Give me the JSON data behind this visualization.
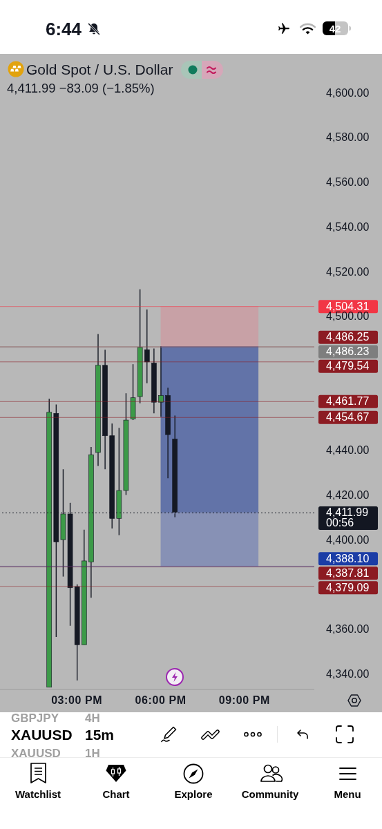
{
  "chart_data": {
    "type": "candlestick",
    "title": "Gold Spot / U.S. Dollar",
    "subtitle": "4,411.99 −83.09 (−1.85%)",
    "x": [
      14,
      14.25,
      14.5,
      14.75,
      15,
      15.25,
      15.5,
      15.75,
      16,
      16.25,
      16.5,
      16.75,
      17,
      17.25,
      17.5,
      17.75,
      18,
      18.25,
      18.5,
      18.75,
      19,
      19.25,
      19.5,
      19.75,
      20,
      20.25,
      20.5,
      20.75,
      21,
      21.25,
      21.5
    ],
    "ohlc": [
      [
        4334,
        4463,
        4334,
        4457
      ],
      [
        4456.5,
        4460.5,
        4356.5,
        4399
      ],
      [
        4400,
        4431.5,
        4383.5,
        4411.5
      ],
      [
        4411.5,
        4416.5,
        4361.5,
        4378.5
      ],
      [
        4379,
        4380,
        4337,
        4353
      ],
      [
        4353,
        4404.5,
        4353,
        4390.5
      ],
      [
        4390,
        4441.5,
        4374,
        4438
      ],
      [
        4439,
        4492,
        4433,
        4478
      ],
      [
        4478,
        4485,
        4431.5,
        4446.5
      ],
      [
        4446.5,
        4452,
        4405,
        4409.5
      ],
      [
        4409.5,
        4450,
        4402,
        4422
      ],
      [
        4422,
        4465.5,
        4420,
        4453.5
      ],
      [
        4454,
        4478.5,
        4453.5,
        4463.5
      ],
      [
        4464,
        4512,
        4461,
        4486
      ],
      [
        4485,
        4503,
        4470,
        4479.5
      ],
      [
        4479,
        4485.5,
        4456.5,
        4461.5
      ],
      [
        4461.5,
        4486.5,
        4455,
        4464.5
      ],
      [
        4464.5,
        4468,
        4427.5,
        4447
      ],
      [
        4445,
        4455.5,
        4410,
        4411.99
      ],
      null,
      null,
      null,
      null,
      null,
      null,
      null,
      null,
      null,
      null,
      null,
      null
    ],
    "colors": [
      "#3c9a48",
      "#151924",
      "#3c9a48",
      "#151924",
      "#151924",
      "#3c9a48",
      "#3c9a48",
      "#3c9a48",
      "#151924",
      "#151924",
      "#3c9a48",
      "#3c9a48",
      "#3c9a48",
      "#3c9a48",
      "#151924",
      "#151924",
      "#3c9a48",
      "#151924",
      "#151924",
      null,
      null,
      null,
      null,
      null,
      null,
      null,
      null,
      null,
      null,
      null,
      null
    ],
    "series": [
      {
        "type": "line",
        "values": [
          null,
          null,
          null,
          null,
          null,
          null,
          null,
          null,
          null,
          null,
          null,
          null,
          null,
          null,
          null,
          null,
          4504.31,
          4504.31,
          4504.31,
          4504.31,
          4504.31,
          4504.31,
          4504.31,
          4504.31,
          4504.31,
          4504.31,
          4504.31,
          4504.31,
          4504.31,
          4504.31,
          4504.31
        ],
        "lower": [
          null,
          null,
          null,
          null,
          null,
          null,
          null,
          null,
          null,
          null,
          null,
          null,
          null,
          null,
          null,
          null,
          4486.23,
          4486.23,
          4486.23,
          4486.23,
          4486.23,
          4486.23,
          4486.23,
          4486.23,
          4486.23,
          4486.23,
          4486.23,
          4486.23,
          4486.23,
          4486.23,
          4486.23
        ],
        "upper": [
          null,
          null,
          null,
          null,
          null,
          null,
          null,
          null,
          null,
          null,
          null,
          null,
          null,
          null,
          null,
          null,
          4504.31,
          4504.31,
          4504.31,
          4504.31,
          4504.31,
          4504.31,
          4504.31,
          4504.31,
          4504.31,
          4504.31,
          4504.31,
          4504.31,
          4504.31,
          4504.31,
          4504.31
        ],
        "color": "#c8a1a6"
      },
      {
        "type": "line",
        "values": [
          null,
          null,
          null,
          null,
          null,
          null,
          null,
          null,
          null,
          null,
          null,
          null,
          null,
          null,
          null,
          null,
          4486.23,
          4486.23,
          4486.23,
          4486.23,
          4486.23,
          4486.23,
          4486.23,
          4486.23,
          4486.23,
          4486.23,
          4486.23,
          4486.23,
          4486.23,
          4486.23,
          4486.23
        ],
        "lower": [
          null,
          null,
          null,
          null,
          null,
          null,
          null,
          null,
          null,
          null,
          null,
          null,
          null,
          null,
          null,
          null,
          4411.99,
          4411.99,
          4411.99,
          4411.99,
          4411.99,
          4411.99,
          4411.99,
          4411.99,
          4411.99,
          4411.99,
          4411.99,
          4411.99,
          4411.99,
          4411.99,
          4411.99
        ],
        "upper": [
          null,
          null,
          null,
          null,
          null,
          null,
          null,
          null,
          null,
          null,
          null,
          null,
          null,
          null,
          null,
          null,
          4486.23,
          4486.23,
          4486.23,
          4486.23,
          4486.23,
          4486.23,
          4486.23,
          4486.23,
          4486.23,
          4486.23,
          4486.23,
          4486.23,
          4486.23,
          4486.23,
          4486.23
        ],
        "color": "#6273a8"
      },
      {
        "type": "line",
        "values": [
          null,
          null,
          null,
          null,
          null,
          null,
          null,
          null,
          null,
          null,
          null,
          null,
          null,
          null,
          null,
          null,
          4411.99,
          4411.99,
          4411.99,
          4411.99,
          4411.99,
          4411.99,
          4411.99,
          4411.99,
          4411.99,
          4411.99,
          4411.99,
          4411.99,
          4411.99,
          4411.99,
          4411.99
        ],
        "lower": [
          null,
          null,
          null,
          null,
          null,
          null,
          null,
          null,
          null,
          null,
          null,
          null,
          null,
          null,
          null,
          null,
          4388.1,
          4388.1,
          4388.1,
          4388.1,
          4388.1,
          4388.1,
          4388.1,
          4388.1,
          4388.1,
          4388.1,
          4388.1,
          4388.1,
          4388.1,
          4388.1,
          4388.1
        ],
        "upper": [
          null,
          null,
          null,
          null,
          null,
          null,
          null,
          null,
          null,
          null,
          null,
          null,
          null,
          null,
          null,
          null,
          4411.99,
          4411.99,
          4411.99,
          4411.99,
          4411.99,
          4411.99,
          4411.99,
          4411.99,
          4411.99,
          4411.99,
          4411.99,
          4411.99,
          4411.99,
          4411.99,
          4411.99
        ],
        "color": "#8791b5"
      }
    ],
    "xlim": [
      12.25,
      23.5
    ],
    "xticks": [
      {
        "value": 15,
        "label": "03:00 PM"
      },
      {
        "value": 18,
        "label": "06:00 PM"
      },
      {
        "value": 21,
        "label": "09:00 PM"
      }
    ],
    "ylim": [
      4333,
      4617
    ],
    "yticks": [
      {
        "value": 4600,
        "label": "4,600.00"
      },
      {
        "value": 4580,
        "label": "4,580.00"
      },
      {
        "value": 4560,
        "label": "4,560.00"
      },
      {
        "value": 4540,
        "label": "4,540.00"
      },
      {
        "value": 4520,
        "label": "4,520.00"
      },
      {
        "value": 4500,
        "label": "4,500.00"
      },
      {
        "value": 4440,
        "label": "4,440.00"
      },
      {
        "value": 4420,
        "label": "4,420.00"
      },
      {
        "value": 4400,
        "label": "4,400.00"
      },
      {
        "value": 4360,
        "label": "4,360.00"
      },
      {
        "value": 4340,
        "label": "4,340.00"
      }
    ],
    "ref_lines": [
      {
        "axis": "y",
        "value": 4504.31,
        "label": "4,504.31",
        "color": "#f23645"
      },
      {
        "axis": "y",
        "value": 4486.25,
        "label": "4,486.25",
        "color": "#8c1b22"
      },
      {
        "axis": "y",
        "value": 4486.23,
        "label": "4,486.23",
        "color": "#7e7e7e"
      },
      {
        "axis": "y",
        "value": 4479.54,
        "label": "4,479.54",
        "color": "#8c1b22"
      },
      {
        "axis": "y",
        "value": 4461.77,
        "label": "4,461.77",
        "color": "#8c1b22"
      },
      {
        "axis": "y",
        "value": 4454.67,
        "label": "4,454.67",
        "color": "#8c1b22"
      },
      {
        "axis": "y",
        "value": 4411.99,
        "label": "4,411.99\n00:56",
        "color": "#131722",
        "line_style": "dotted"
      },
      {
        "axis": "y",
        "value": 4388.1,
        "label": "4,388.10",
        "color": "#1b3da6"
      },
      {
        "axis": "y",
        "value": 4387.81,
        "label": "4,387.81",
        "color": "#8c1b22"
      },
      {
        "axis": "y",
        "value": 4379.09,
        "label": "4,379.09",
        "color": "#8c1b22"
      }
    ],
    "annotations": [
      "6:44",
      "42",
      "GBPJPY",
      "4H",
      "XAUUSD",
      "15m",
      "XAUUSD",
      "1H",
      "Watchlist",
      "Chart",
      "Explore",
      "Community",
      "Menu"
    ]
  }
}
